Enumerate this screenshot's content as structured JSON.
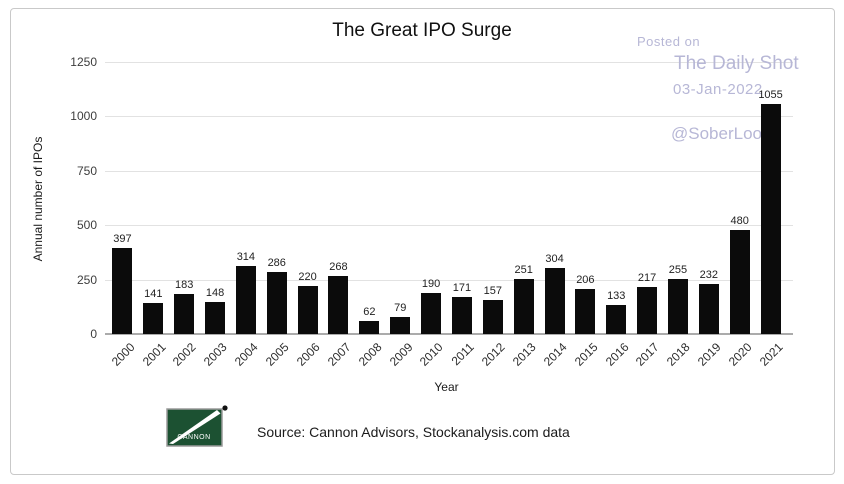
{
  "chart_data": {
    "type": "bar",
    "title": "The Great IPO Surge",
    "xlabel": "Year",
    "ylabel": "Annual number of IPOs",
    "categories": [
      "2000",
      "2001",
      "2002",
      "2003",
      "2004",
      "2005",
      "2006",
      "2007",
      "2008",
      "2009",
      "2010",
      "2011",
      "2012",
      "2013",
      "2014",
      "2015",
      "2016",
      "2017",
      "2018",
      "2019",
      "2020",
      "2021"
    ],
    "values": [
      397,
      141,
      183,
      148,
      314,
      286,
      220,
      268,
      62,
      79,
      190,
      171,
      157,
      251,
      304,
      206,
      133,
      217,
      255,
      232,
      480,
      1055
    ],
    "ylim": [
      0,
      1250
    ],
    "yticks": [
      0,
      250,
      500,
      750,
      1000,
      1250
    ],
    "grid": true,
    "legend": "none",
    "data_labels": true,
    "bar_color": "#0b0b0b"
  },
  "watermark": {
    "line1": "Posted on",
    "line2": "The Daily Shot",
    "line3": "03-Jan-2022",
    "line4": "@SoberLook",
    "color": "#b7b7d6"
  },
  "footer": {
    "source_text": "Source: Cannon Advisors, Stockanalysis.com data",
    "logo_text": "CANNON",
    "logo_green": "#1c5132"
  }
}
